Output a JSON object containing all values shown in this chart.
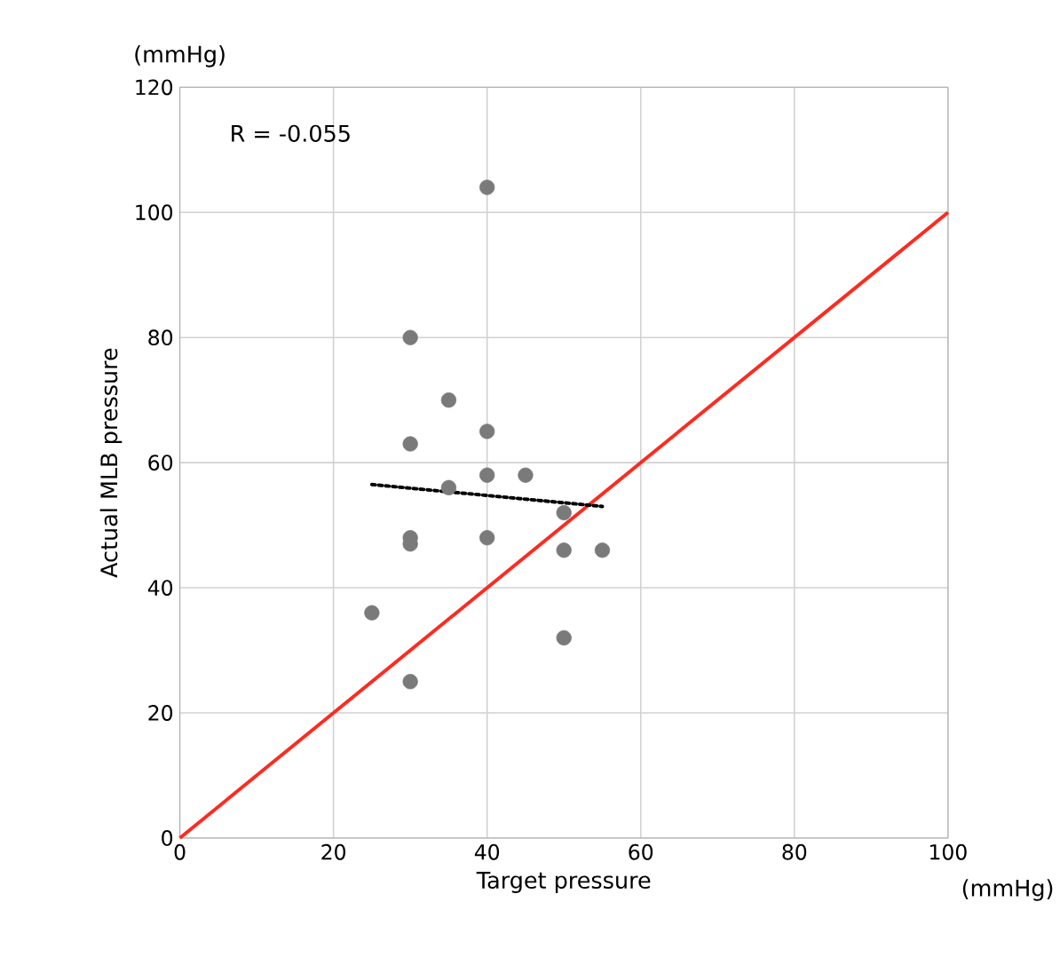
{
  "chart_data": {
    "type": "scatter",
    "xlabel": "Target pressure",
    "ylabel": "Actual MLB pressure",
    "annotations": [
      "R = -0.055",
      "(mmHg)",
      "(mmHg)"
    ],
    "xlim": [
      0,
      100
    ],
    "xticks": [
      0,
      20,
      40,
      60,
      80,
      100
    ],
    "ylim": [
      0,
      120
    ],
    "yticks": [
      0,
      20,
      40,
      60,
      80,
      100,
      120
    ],
    "grid": true,
    "series": [
      {
        "type": "line",
        "color": "#ff2a1f",
        "line_style": "solid",
        "marker": "none",
        "x": [
          0,
          100
        ],
        "values": [
          0,
          100
        ]
      },
      {
        "color": "#7a7a7a",
        "marker": "circle",
        "x": [
          25,
          30,
          30,
          30,
          30,
          30,
          35,
          35,
          40,
          40,
          40,
          40,
          45,
          50,
          50,
          50,
          55
        ],
        "values": [
          36,
          80,
          63,
          48,
          47,
          25,
          70,
          56,
          104,
          65,
          58,
          48,
          58,
          52,
          46,
          32,
          46
        ]
      },
      {
        "type": "line",
        "color": "#000000",
        "line_style": "dotted",
        "marker": "none",
        "x": [
          25,
          55
        ],
        "values": [
          56.5,
          53
        ]
      }
    ]
  }
}
